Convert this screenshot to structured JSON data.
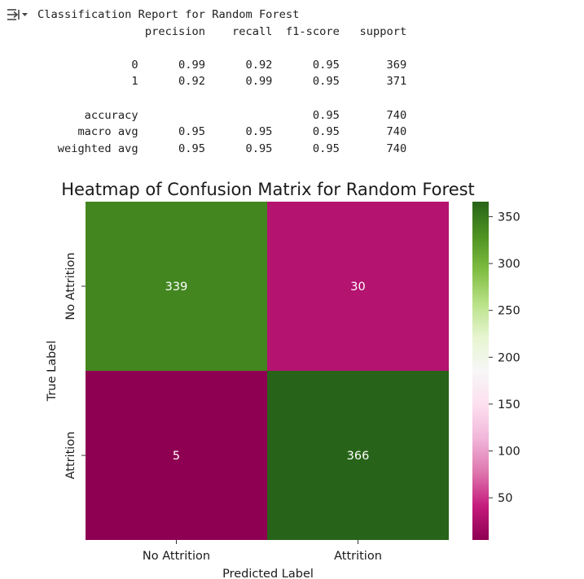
{
  "output_icon": "output-toggle-icon",
  "report": {
    "title": "Classification Report for Random Forest",
    "headers": [
      "precision",
      "recall",
      "f1-score",
      "support"
    ],
    "rows": [
      {
        "label": "0",
        "precision": "0.99",
        "recall": "0.92",
        "f1": "0.95",
        "support": "369"
      },
      {
        "label": "1",
        "precision": "0.92",
        "recall": "0.99",
        "f1": "0.95",
        "support": "371"
      },
      null,
      {
        "label": "accuracy",
        "precision": "",
        "recall": "",
        "f1": "0.95",
        "support": "740"
      },
      {
        "label": "macro avg",
        "precision": "0.95",
        "recall": "0.95",
        "f1": "0.95",
        "support": "740"
      },
      {
        "label": "weighted avg",
        "precision": "0.95",
        "recall": "0.95",
        "f1": "0.95",
        "support": "740"
      }
    ]
  },
  "chart_data": {
    "type": "heatmap",
    "title": "Heatmap of Confusion Matrix for Random Forest",
    "xlabel": "Predicted Label",
    "ylabel": "True Label",
    "x_categories": [
      "No Attrition",
      "Attrition"
    ],
    "y_categories": [
      "No Attrition",
      "Attrition"
    ],
    "values": [
      [
        339,
        30
      ],
      [
        5,
        366
      ]
    ],
    "colormap": "PiYG",
    "vmin": 5,
    "vmax": 366,
    "colorbar_ticks": [
      50,
      100,
      150,
      200,
      250,
      300,
      350
    ],
    "annotation_colors": {
      "dark": "#ffffff"
    }
  }
}
